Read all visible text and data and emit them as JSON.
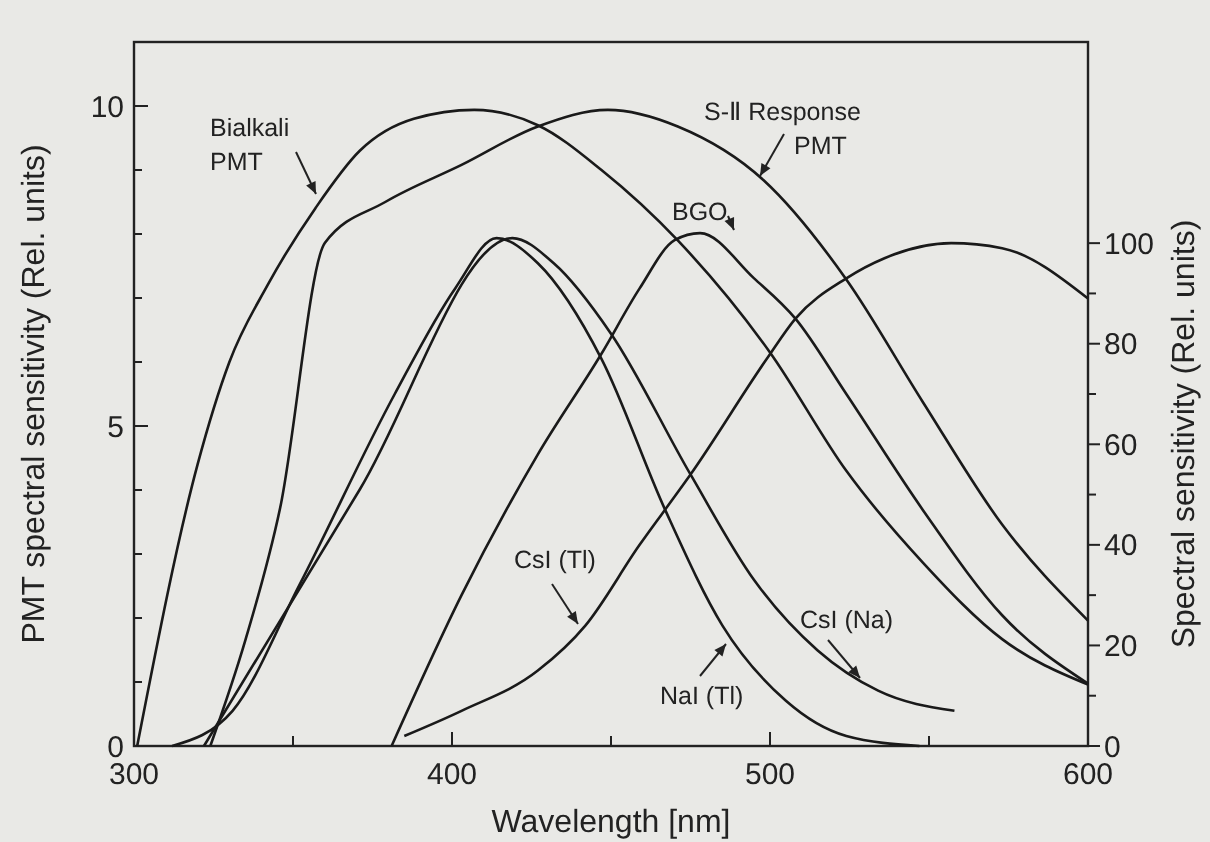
{
  "chart_data": {
    "type": "line",
    "xlabel": "Wavelength [nm]",
    "ylabel": "PMT spectral sensitivity (Rel. units)",
    "y2label": "Spectral sensitivity (Rel. units)",
    "xlim": [
      300,
      600
    ],
    "xticks": [
      300,
      {
        "value": 350,
        "label": null
      },
      400,
      {
        "value": 450,
        "label": null
      },
      500,
      {
        "value": 550,
        "label": null
      },
      600
    ],
    "ylim": [
      0,
      11
    ],
    "yticks": [
      0,
      {
        "value": 1,
        "label": null
      },
      {
        "value": 2,
        "label": null
      },
      {
        "value": 3,
        "label": null
      },
      {
        "value": 4,
        "label": null
      },
      5,
      {
        "value": 6,
        "label": null
      },
      {
        "value": 7,
        "label": null
      },
      {
        "value": 8,
        "label": null
      },
      {
        "value": 9,
        "label": null
      },
      10
    ],
    "y2lim": [
      0,
      140
    ],
    "y2ticks": [
      0,
      {
        "value": 10,
        "label": null
      },
      20,
      {
        "value": 30,
        "label": null
      },
      40,
      {
        "value": 50,
        "label": null
      },
      60,
      {
        "value": 70,
        "label": null
      },
      80,
      {
        "value": 90,
        "label": null
      },
      100
    ],
    "series": [
      {
        "name": "Bialkali PMT",
        "color": "#1a1a1a",
        "x": [
          301,
          320,
          330,
          342,
          357,
          371,
          388,
          407,
          427,
          447,
          471,
          500,
          524,
          548,
          573,
          600
        ],
        "values": [
          0,
          4.4,
          6.0,
          7.2,
          8.4,
          9.3,
          9.8,
          9.94,
          9.7,
          9.0,
          7.9,
          6.15,
          4.3,
          2.87,
          1.67,
          0.96
        ]
      },
      {
        "name": "S-Ⅱ Response PMT",
        "color": "#1a1a1a",
        "x": [
          324,
          335,
          346,
          360,
          379,
          403,
          427,
          449,
          471,
          498,
          524,
          548,
          573,
          600
        ],
        "values": [
          0,
          1.65,
          3.73,
          7.86,
          8.5,
          9.08,
          9.68,
          9.94,
          9.68,
          8.84,
          7.29,
          5.38,
          3.46,
          1.96
        ]
      },
      {
        "name": "BGO",
        "color": "#1a1a1a",
        "axis": "y2",
        "x": [
          381,
          403,
          427,
          447,
          459,
          470,
          478,
          495,
          508,
          524,
          548,
          573,
          600
        ],
        "values": [
          0,
          30,
          58,
          78,
          91,
          100.6,
          102,
          93,
          85,
          70,
          47,
          26,
          12.4
        ]
      },
      {
        "name": "CsI (Tl)",
        "color": "#1a1a1a",
        "axis": "y2",
        "x": [
          385,
          403,
          427,
          442,
          459,
          467,
          475,
          499,
          508,
          524,
          536,
          557,
          573,
          600
        ],
        "values": [
          2,
          7,
          15,
          24,
          40,
          47,
          54,
          77,
          85,
          93,
          97,
          100,
          99,
          89
        ]
      },
      {
        "name": "NaI (Tl)",
        "color": "#1a1a1a",
        "axis": "y2",
        "x": [
          312,
          331,
          352,
          382,
          401,
          414,
          427,
          447,
          467,
          485,
          505,
          524,
          547
        ],
        "values": [
          0,
          7,
          32,
          70,
          91,
          101,
          96,
          77,
          47,
          24,
          9,
          2,
          0
        ]
      },
      {
        "name": "CsI (Na)",
        "color": "#1a1a1a",
        "axis": "y2",
        "x": [
          322,
          371,
          419,
          432,
          450,
          475,
          495,
          515,
          534,
          558
        ],
        "values": [
          0,
          51,
          101,
          96,
          82,
          54,
          33,
          19,
          11,
          7
        ]
      }
    ]
  }
}
